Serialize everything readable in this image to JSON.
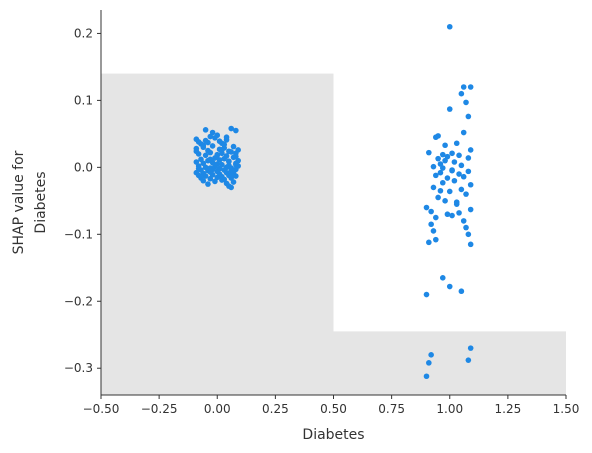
{
  "chart_data": {
    "type": "scatter",
    "xlabel": "Diabetes",
    "ylabel_lines": [
      "SHAP value for",
      "Diabetes"
    ],
    "xlim": [
      -0.5,
      1.5
    ],
    "ylim": [
      -0.34,
      0.235
    ],
    "x_ticks": [
      -0.5,
      -0.25,
      0.0,
      0.25,
      0.5,
      0.75,
      1.0,
      1.25,
      1.5
    ],
    "x_tick_labels": [
      "−0.50",
      "−0.25",
      "0.00",
      "0.25",
      "0.50",
      "0.75",
      "1.00",
      "1.25",
      "1.50"
    ],
    "y_ticks": [
      0.2,
      0.1,
      0.0,
      -0.1,
      -0.2,
      -0.3
    ],
    "y_tick_labels": [
      "0.2",
      "0.1",
      "0.0",
      "−0.1",
      "−0.2",
      "−0.3"
    ],
    "point_color": "#1e88e5",
    "background_regions": [
      {
        "x0": -0.5,
        "x1": 0.5,
        "y0": -0.34,
        "y1": 0.14,
        "color": "#e5e5e5"
      },
      {
        "x0": 0.5,
        "x1": 1.5,
        "y0": -0.34,
        "y1": -0.245,
        "color": "#e5e5e5"
      }
    ],
    "series": [
      {
        "values_x": [
          -0.09,
          -0.08,
          -0.07,
          -0.05,
          -0.03,
          -0.01,
          0.0,
          0.02,
          0.04,
          0.06,
          0.08,
          -0.09,
          -0.06,
          -0.04,
          -0.02,
          0.01,
          0.03,
          0.05,
          0.07,
          0.09,
          -0.08,
          -0.05,
          -0.03,
          0.0,
          0.02,
          0.04,
          0.06,
          0.08,
          -0.07,
          -0.04,
          -0.01,
          0.01,
          0.03,
          0.05,
          0.07,
          -0.09,
          -0.06,
          -0.02,
          0.0,
          0.02,
          0.05,
          0.08,
          -0.08,
          -0.05,
          -0.03,
          -0.01,
          0.01,
          0.04,
          0.06,
          0.09,
          -0.07,
          -0.04,
          -0.02,
          0.0,
          0.03,
          0.06,
          0.08,
          -0.09,
          -0.06,
          -0.03,
          0.01,
          0.04,
          0.07,
          -0.08,
          -0.05,
          -0.02,
          0.02,
          0.05,
          0.08,
          -0.07,
          -0.03,
          0.0,
          0.03,
          0.06,
          -0.06,
          -0.01,
          0.02,
          0.07,
          -0.04,
          0.04,
          0.05,
          0.06,
          -0.02,
          -0.05,
          0.03,
          0.08,
          -0.08,
          0.01,
          0.09,
          -0.09,
          -0.03,
          0.0,
          0.05,
          0.07,
          -0.06,
          0.02,
          0.06,
          -0.04,
          0.04,
          0.08
        ],
        "values_y": [
          0.042,
          0.038,
          0.035,
          0.04,
          0.046,
          0.044,
          0.048,
          0.036,
          0.041,
          0.058,
          0.055,
          0.028,
          0.03,
          0.025,
          0.032,
          0.027,
          0.029,
          0.024,
          0.031,
          0.026,
          0.02,
          0.018,
          0.022,
          0.019,
          0.021,
          0.017,
          0.023,
          0.016,
          0.012,
          0.01,
          0.014,
          0.011,
          0.013,
          0.009,
          0.015,
          0.008,
          0.006,
          0.007,
          0.005,
          0.004,
          0.003,
          0.006,
          0.002,
          0.0,
          -0.001,
          0.001,
          -0.002,
          0.0,
          -0.001,
          0.002,
          -0.004,
          -0.005,
          -0.003,
          -0.006,
          -0.004,
          -0.005,
          -0.003,
          -0.008,
          -0.009,
          -0.007,
          -0.01,
          -0.008,
          -0.009,
          -0.012,
          -0.013,
          -0.011,
          -0.014,
          -0.012,
          -0.013,
          -0.016,
          -0.017,
          -0.015,
          -0.018,
          -0.016,
          -0.02,
          -0.021,
          -0.019,
          -0.022,
          -0.025,
          -0.024,
          -0.028,
          -0.03,
          0.052,
          0.056,
          0.034,
          0.021,
          -0.002,
          0.039,
          0.01,
          0.024,
          0.012,
          0.018,
          0.009,
          -0.007,
          0.033,
          0.026,
          -0.012,
          0.037,
          0.045,
          0.004
        ]
      },
      {
        "values_x": [
          1.0,
          1.06,
          1.09,
          1.05,
          1.07,
          1.0,
          1.08,
          0.95,
          1.06,
          0.94,
          1.03,
          0.98,
          1.09,
          0.91,
          1.01,
          0.97,
          1.04,
          0.99,
          1.08,
          0.95,
          1.02,
          0.96,
          1.05,
          0.93,
          0.97,
          1.01,
          1.08,
          0.96,
          1.04,
          0.94,
          1.06,
          0.99,
          1.02,
          0.97,
          1.09,
          0.93,
          1.05,
          1.0,
          1.07,
          0.95,
          0.98,
          1.03,
          0.9,
          1.09,
          0.92,
          1.04,
          0.99,
          1.01,
          0.94,
          1.06,
          0.92,
          1.07,
          0.93,
          1.08,
          1.09,
          0.94,
          0.91,
          0.97,
          1.0,
          1.05,
          0.9,
          1.09,
          0.92,
          1.08,
          0.9,
          0.91,
          1.03,
          0.96,
          0.98,
          1.01
        ],
        "values_y": [
          0.21,
          0.12,
          0.12,
          0.11,
          0.097,
          0.087,
          0.076,
          0.047,
          0.052,
          0.045,
          0.036,
          0.033,
          0.026,
          0.022,
          0.021,
          0.019,
          0.018,
          0.016,
          0.014,
          0.013,
          0.008,
          0.005,
          0.003,
          0.001,
          -0.001,
          -0.004,
          -0.006,
          -0.008,
          -0.01,
          -0.012,
          -0.014,
          -0.016,
          -0.02,
          -0.023,
          -0.026,
          -0.03,
          -0.033,
          -0.036,
          -0.04,
          -0.045,
          -0.05,
          -0.055,
          -0.06,
          -0.063,
          -0.066,
          -0.068,
          -0.07,
          -0.072,
          -0.075,
          -0.08,
          -0.085,
          -0.09,
          -0.095,
          -0.1,
          -0.115,
          -0.108,
          -0.112,
          -0.165,
          -0.178,
          -0.185,
          -0.19,
          -0.27,
          -0.28,
          -0.288,
          -0.312,
          -0.292,
          -0.052,
          -0.035,
          0.01,
          -0.005
        ]
      }
    ]
  }
}
